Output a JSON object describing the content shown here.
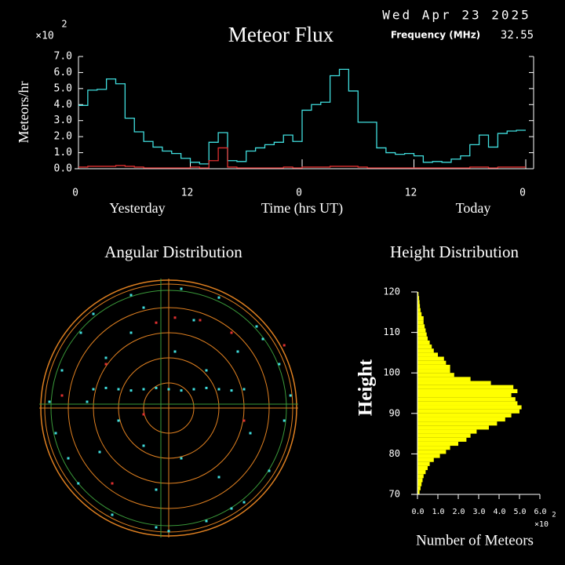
{
  "chart_data": [
    {
      "type": "line",
      "title": "Meteor Flux",
      "date": "Wed Apr 23 2025",
      "frequency_label": "Frequency (MHz)",
      "frequency": 32.55,
      "ylabel": "Meteors/hr",
      "y_multiplier": "×10",
      "y_multiplier_exp": "2",
      "xlabel": "Time (hrs UT)",
      "day_labels": [
        "Yesterday",
        "Today"
      ],
      "x": [
        0,
        1,
        2,
        3,
        4,
        5,
        6,
        7,
        8,
        9,
        10,
        11,
        12,
        13,
        14,
        15,
        16,
        17,
        18,
        19,
        20,
        21,
        22,
        23,
        24,
        25,
        26,
        27,
        28,
        29,
        30,
        31,
        32,
        33,
        34,
        35,
        36,
        37,
        38,
        39,
        40,
        41,
        42,
        43,
        44,
        45,
        46,
        47
      ],
      "series": [
        {
          "color": "#40dede",
          "values": [
            3.95,
            4.9,
            4.95,
            5.6,
            5.3,
            3.15,
            2.3,
            1.7,
            1.35,
            1.1,
            0.95,
            0.65,
            0.4,
            0.3,
            1.65,
            2.25,
            0.5,
            0.45,
            1.1,
            1.3,
            1.5,
            1.65,
            2.1,
            1.7,
            3.65,
            4.0,
            4.15,
            5.8,
            6.2,
            4.85,
            2.9,
            2.9,
            1.3,
            1.0,
            0.9,
            0.95,
            0.8,
            0.4,
            0.45,
            0.4,
            0.6,
            0.8,
            1.5,
            2.1,
            1.35,
            2.2,
            2.35,
            2.4
          ]
        },
        {
          "color": "#e03030",
          "values": [
            0.1,
            0.15,
            0.15,
            0.15,
            0.2,
            0.15,
            0.1,
            0.05,
            0.05,
            0.05,
            0.05,
            0.05,
            0.1,
            0.05,
            0.5,
            1.3,
            0.1,
            0.05,
            0.05,
            0.05,
            0.05,
            0.05,
            0.1,
            0.05,
            0.1,
            0.1,
            0.1,
            0.15,
            0.15,
            0.15,
            0.1,
            0.05,
            0.05,
            0.05,
            0.05,
            0.05,
            0.05,
            0.05,
            0.05,
            0.05,
            0.05,
            0.05,
            0.1,
            0.1,
            0.05,
            0.1,
            0.1,
            0.1
          ]
        }
      ],
      "xlim": [
        0,
        48
      ],
      "xticks": [
        0,
        12,
        {
          "value": 24,
          "label": "0"
        },
        {
          "value": 36,
          "label": "12"
        },
        {
          "value": 48,
          "label": "0"
        }
      ],
      "ylim": [
        0,
        7
      ],
      "yticks": [
        {
          "value": 0,
          "label": "0.0"
        },
        {
          "value": 1,
          "label": "1.0"
        },
        {
          "value": 2,
          "label": "2.0"
        },
        {
          "value": 3,
          "label": "3.0"
        },
        {
          "value": 4,
          "label": "4.0"
        },
        {
          "value": 5,
          "label": "5.0"
        },
        {
          "value": 6,
          "label": "6.0"
        },
        {
          "value": 7,
          "label": "7.0"
        }
      ],
      "grid": false
    },
    {
      "type": "scatter",
      "title": "Angular Distribution",
      "xlim": [
        -1,
        1
      ],
      "ylim": [
        -1,
        1
      ],
      "series": [
        {
          "color": "#40dede",
          "x": [
            -0.85,
            -0.9,
            -0.7,
            -0.6,
            -0.3,
            0.1,
            0.4,
            0.7,
            0.88,
            0.92,
            0.8,
            0.6,
            0.3,
            -0.1,
            -0.45,
            -0.72,
            -0.5,
            -0.3,
            0.2,
            0.55,
            0.65,
            0.4,
            -0.1,
            -0.55,
            -0.65,
            0.3,
            -0.2,
            0.1,
            0.05,
            -0.4,
            -0.6,
            -0.5,
            -0.4,
            -0.3,
            -0.2,
            -0.1,
            0,
            0.1,
            0.2,
            0.3,
            0.4,
            0.5,
            0.6,
            -0.95,
            0.97,
            0,
            -0.8,
            0.75,
            -0.2,
            0.5
          ],
          "y": [
            0.3,
            -0.2,
            0.6,
            0.75,
            0.9,
            0.95,
            0.88,
            0.65,
            0.35,
            -0.1,
            -0.5,
            -0.75,
            -0.9,
            -0.95,
            -0.85,
            -0.6,
            0.4,
            0.6,
            0.7,
            0.45,
            -0.2,
            -0.55,
            -0.65,
            -0.35,
            0.05,
            0.3,
            -0.3,
            -0.4,
            0.45,
            -0.1,
            0.15,
            0.16,
            0.15,
            0.14,
            0.15,
            0.16,
            0.15,
            0.14,
            0.15,
            0.16,
            0.15,
            0.14,
            0.15,
            0.05,
            0.1,
            -0.98,
            -0.4,
            0.55,
            0.8,
            -0.8
          ]
        },
        {
          "color": "#e03030",
          "x": [
            -0.1,
            0.05,
            0.25,
            0.5,
            -0.5,
            -0.45,
            -0.2,
            0.6,
            0.92,
            -0.85
          ],
          "y": [
            0.68,
            0.72,
            0.7,
            0.6,
            0.35,
            -0.6,
            -0.05,
            -0.1,
            0.5,
            0.1
          ]
        }
      ]
    },
    {
      "type": "histogram",
      "title": "Height Distribution",
      "orientation": "horizontal",
      "ylabel": "Height",
      "xlabel": "Number of Meteors",
      "x_multiplier": "×10",
      "x_multiplier_exp": "2",
      "color": "#ffff00",
      "bins": [
        70,
        71,
        72,
        73,
        74,
        75,
        76,
        77,
        78,
        79,
        80,
        81,
        82,
        83,
        84,
        85,
        86,
        87,
        88,
        89,
        90,
        91,
        92,
        93,
        94,
        95,
        96,
        97,
        98,
        99,
        100,
        101,
        102,
        103,
        104,
        105,
        106,
        107,
        108,
        109,
        110,
        111,
        112,
        113,
        114,
        115,
        116,
        117,
        118,
        119,
        120
      ],
      "counts": [
        0.1,
        0.15,
        0.2,
        0.25,
        0.3,
        0.4,
        0.5,
        0.6,
        0.8,
        1.1,
        1.4,
        1.6,
        2.0,
        2.4,
        2.6,
        2.9,
        3.5,
        3.9,
        4.3,
        4.6,
        5.0,
        5.1,
        4.9,
        4.8,
        4.6,
        4.9,
        4.7,
        3.6,
        2.6,
        1.8,
        1.6,
        1.6,
        1.4,
        1.3,
        1.0,
        0.8,
        0.7,
        0.6,
        0.5,
        0.45,
        0.4,
        0.35,
        0.3,
        0.3,
        0.2,
        0.15,
        0.12,
        0.1,
        0.08,
        0.05
      ],
      "ylim": [
        70,
        120
      ],
      "yticks": [
        70,
        80,
        90,
        100,
        110,
        120
      ],
      "xlim": [
        0,
        6
      ],
      "xticks": [
        {
          "value": 0,
          "label": "0.0"
        },
        {
          "value": 1,
          "label": "1.0"
        },
        {
          "value": 2,
          "label": "2.0"
        },
        {
          "value": 3,
          "label": "3.0"
        },
        {
          "value": 4,
          "label": "4.0"
        },
        {
          "value": 5,
          "label": "5.0"
        },
        {
          "value": 6,
          "label": "6.0"
        }
      ]
    }
  ]
}
